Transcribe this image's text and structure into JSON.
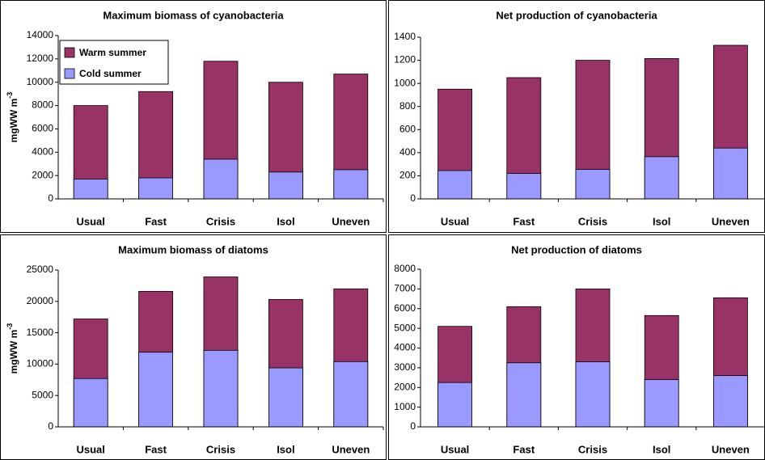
{
  "chart_data": [
    {
      "type": "bar",
      "title": "Maximum biomass of cyanobacteria",
      "y_label": "mgWW m",
      "y_label_sup": "-3",
      "categories": [
        "Usual",
        "Fast",
        "Crisis",
        "Isol",
        "Uneven"
      ],
      "series": [
        {
          "name": "Warm summer",
          "color": "#993366",
          "values": [
            8000,
            9200,
            11800,
            10000,
            10700
          ]
        },
        {
          "name": "Cold summer",
          "color": "#9999ff",
          "values": [
            1700,
            1800,
            3400,
            2300,
            2500
          ]
        }
      ],
      "ylim": [
        0,
        14000
      ],
      "yticks": [
        0,
        2000,
        4000,
        6000,
        8000,
        10000,
        12000,
        14000
      ],
      "legend": "upper left"
    },
    {
      "type": "bar",
      "title": "Net production of cyanobacteria",
      "categories": [
        "Usual",
        "Fast",
        "Crisis",
        "Isol",
        "Uneven"
      ],
      "series": [
        {
          "name": "Warm summer",
          "color": "#993366",
          "values": [
            950,
            1050,
            1200,
            1215,
            1330
          ]
        },
        {
          "name": "Cold summer",
          "color": "#9999ff",
          "values": [
            245,
            220,
            255,
            365,
            440
          ]
        }
      ],
      "ylim": [
        0,
        1400
      ],
      "yticks": [
        0,
        200,
        400,
        600,
        800,
        1000,
        1200,
        1400
      ]
    },
    {
      "type": "bar",
      "title": "Maximum biomass of diatoms",
      "y_label": "mgWW m",
      "y_label_sup": "-3",
      "categories": [
        "Usual",
        "Fast",
        "Crisis",
        "Isol",
        "Uneven"
      ],
      "series": [
        {
          "name": "Warm summer",
          "color": "#993366",
          "values": [
            17200,
            21600,
            23900,
            20300,
            22000
          ]
        },
        {
          "name": "Cold summer",
          "color": "#9999ff",
          "values": [
            7700,
            11900,
            12200,
            9400,
            10400
          ]
        }
      ],
      "ylim": [
        0,
        25000
      ],
      "yticks": [
        0,
        5000,
        10000,
        15000,
        20000,
        25000
      ]
    },
    {
      "type": "bar",
      "title": "Net production of diatoms",
      "categories": [
        "Usual",
        "Fast",
        "Crisis",
        "Isol",
        "Uneven"
      ],
      "series": [
        {
          "name": "Warm summer",
          "color": "#993366",
          "values": [
            5100,
            6100,
            7000,
            5650,
            6550
          ]
        },
        {
          "name": "Cold summer",
          "color": "#9999ff",
          "values": [
            2250,
            3250,
            3300,
            2400,
            2600
          ]
        }
      ],
      "ylim": [
        0,
        8000
      ],
      "yticks": [
        0,
        1000,
        2000,
        3000,
        4000,
        5000,
        6000,
        7000,
        8000
      ]
    }
  ]
}
